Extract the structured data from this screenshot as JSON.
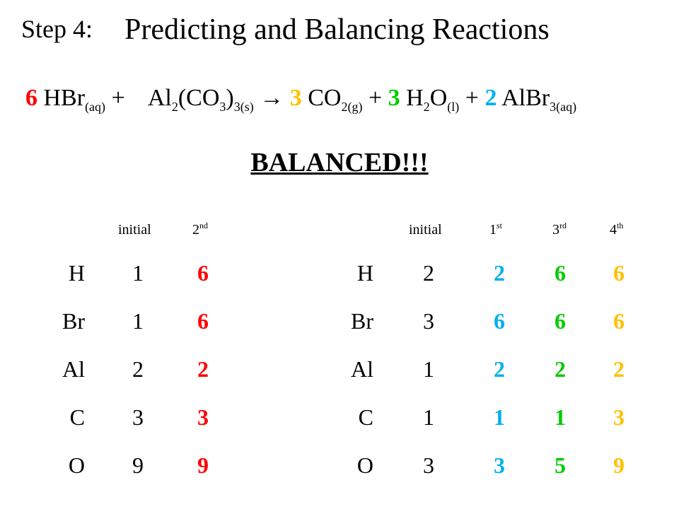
{
  "header": {
    "step_label": "Step 4:",
    "title": "Predicting and Balancing Reactions"
  },
  "colors": {
    "red": "#ff0000",
    "orange": "#ffc000",
    "green": "#00cc00",
    "blue": "#00b0f0",
    "black": "#000000"
  },
  "equation": {
    "c1": "6",
    "r1": "HBr",
    "r1_state": "(aq)",
    "plus": "+",
    "r2_a": "Al",
    "r2_sub1": "2",
    "r2_b": "(CO",
    "r2_sub2": "3",
    "r2_c": ")",
    "r2_sub3": "3(s)",
    "arrow": "→",
    "c3": "3",
    "p1": "CO",
    "p1_sub": "2(g)",
    "c4": "3",
    "p2_a": "H",
    "p2_sub": "2",
    "p2_b": "O",
    "p2_state": "(l)",
    "c5": "2",
    "p3": "AlBr",
    "p3_sub": "3(aq)"
  },
  "status": "BALANCED!!!",
  "left_table": {
    "headers": {
      "initial": "initial",
      "second_num": "2",
      "second_sup": "nd"
    },
    "rows": [
      {
        "el": "H",
        "initial": "1",
        "second": "6"
      },
      {
        "el": "Br",
        "initial": "1",
        "second": "6"
      },
      {
        "el": "Al",
        "initial": "2",
        "second": "2"
      },
      {
        "el": "C",
        "initial": "3",
        "second": "3"
      },
      {
        "el": "O",
        "initial": "9",
        "second": "9"
      }
    ]
  },
  "right_table": {
    "headers": {
      "initial": "initial",
      "first_num": "1",
      "first_sup": "st",
      "third_num": "3",
      "third_sup": "rd",
      "fourth_num": "4",
      "fourth_sup": "th"
    },
    "rows": [
      {
        "el": "H",
        "initial": "2",
        "first": "2",
        "third": "6",
        "fourth": "6"
      },
      {
        "el": "Br",
        "initial": "3",
        "first": "6",
        "third": "6",
        "fourth": "6"
      },
      {
        "el": "Al",
        "initial": "1",
        "first": "2",
        "third": "2",
        "fourth": "2"
      },
      {
        "el": "C",
        "initial": "1",
        "first": "1",
        "third": "1",
        "fourth": "3"
      },
      {
        "el": "O",
        "initial": "3",
        "first": "3",
        "third": "5",
        "fourth": "9"
      }
    ]
  }
}
